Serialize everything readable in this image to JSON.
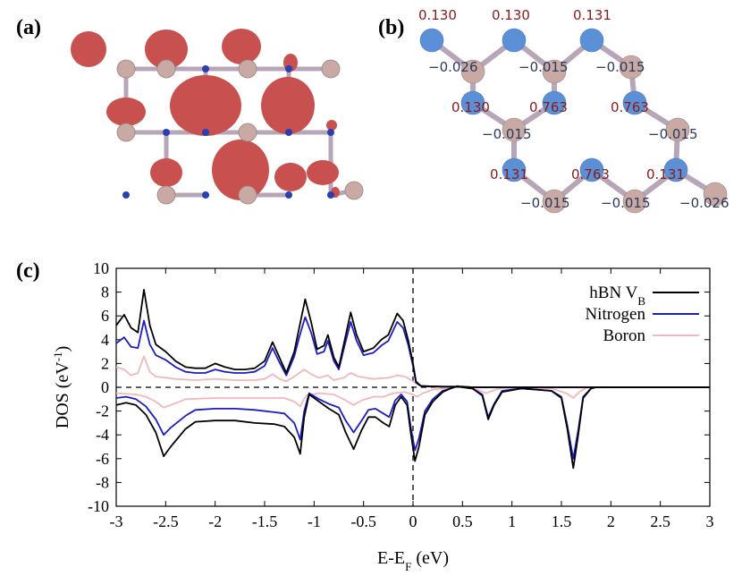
{
  "panels": {
    "a": "(a)",
    "b": "(b)",
    "c": "(c)"
  },
  "colors": {
    "atom_n": "#5b8fd6",
    "atom_b": "#c8a9a3",
    "bond": "#b7a6b8",
    "spin_density": "#c8504f",
    "charge_red": "#8b1a1a",
    "charge_blue": "#2b3a5c",
    "total": "#000000",
    "nitrogen": "#1c1cc0",
    "boron": "#f2b8b8"
  },
  "panel_b": {
    "charges": [
      {
        "text": "0.130",
        "color": "red"
      },
      {
        "text": "0.130",
        "color": "red"
      },
      {
        "text": "0.131",
        "color": "red"
      },
      {
        "text": "−0.026",
        "color": "blue"
      },
      {
        "text": "−0.015",
        "color": "blue"
      },
      {
        "text": "−0.015",
        "color": "blue"
      },
      {
        "text": "0.130",
        "color": "red"
      },
      {
        "text": "0.763",
        "color": "red"
      },
      {
        "text": "0.763",
        "color": "red"
      },
      {
        "text": "−0.015",
        "color": "blue"
      },
      {
        "text": "−0.015",
        "color": "blue"
      },
      {
        "text": "0.131",
        "color": "red"
      },
      {
        "text": "0.763",
        "color": "red"
      },
      {
        "text": "0.131",
        "color": "red"
      },
      {
        "text": "−0.015",
        "color": "blue"
      },
      {
        "text": "−0.015",
        "color": "blue"
      },
      {
        "text": "−0.026",
        "color": "blue"
      }
    ]
  },
  "chart_data": {
    "type": "line",
    "title": "",
    "xlabel": "E-E_F (eV)",
    "ylabel": "DOS (eV^-1)",
    "xlim": [
      -3,
      3
    ],
    "ylim": [
      -10,
      10
    ],
    "xticks": [
      "-3",
      "-2.5",
      "-2",
      "-1.5",
      "-1",
      "-0.5",
      "0",
      "0.5",
      "1",
      "1.5",
      "2",
      "2.5",
      "3"
    ],
    "yticks": [
      "10",
      "8",
      "6",
      "4",
      "2",
      "0",
      "-2",
      "-4",
      "-6",
      "-8",
      "-10"
    ],
    "legend_position": "top-right",
    "legend": [
      "hBN V_B",
      "Nitrogen",
      "Boron"
    ],
    "series": [
      {
        "name": "hBN V_B",
        "color": "#000000",
        "up": [
          [
            -3,
            5.2
          ],
          [
            -2.92,
            6.1
          ],
          [
            -2.85,
            5.0
          ],
          [
            -2.78,
            4.6
          ],
          [
            -2.72,
            8.2
          ],
          [
            -2.66,
            5.2
          ],
          [
            -2.6,
            3.6
          ],
          [
            -2.5,
            3.0
          ],
          [
            -2.4,
            2.2
          ],
          [
            -2.3,
            1.7
          ],
          [
            -2.2,
            1.6
          ],
          [
            -2.1,
            1.6
          ],
          [
            -2.0,
            2.0
          ],
          [
            -1.9,
            1.7
          ],
          [
            -1.8,
            1.5
          ],
          [
            -1.7,
            1.5
          ],
          [
            -1.6,
            1.6
          ],
          [
            -1.5,
            2.2
          ],
          [
            -1.42,
            3.8
          ],
          [
            -1.35,
            2.5
          ],
          [
            -1.28,
            1.2
          ],
          [
            -1.2,
            3.0
          ],
          [
            -1.15,
            5.0
          ],
          [
            -1.09,
            7.4
          ],
          [
            -1.03,
            5.5
          ],
          [
            -0.97,
            3.2
          ],
          [
            -0.9,
            3.5
          ],
          [
            -0.86,
            4.4
          ],
          [
            -0.8,
            2.5
          ],
          [
            -0.75,
            1.7
          ],
          [
            -0.7,
            3.6
          ],
          [
            -0.63,
            6.3
          ],
          [
            -0.57,
            4.4
          ],
          [
            -0.5,
            3.0
          ],
          [
            -0.4,
            3.3
          ],
          [
            -0.32,
            4.0
          ],
          [
            -0.25,
            4.4
          ],
          [
            -0.16,
            6.2
          ],
          [
            -0.1,
            5.6
          ],
          [
            -0.05,
            4.0
          ],
          [
            0.0,
            2.0
          ],
          [
            0.03,
            0.5
          ],
          [
            0.08,
            0.1
          ],
          [
            0.3,
            0.05
          ],
          [
            0.5,
            0.05
          ],
          [
            0.6,
            0.0
          ],
          [
            3.0,
            0.0
          ]
        ],
        "down": [
          [
            -3,
            -1.5
          ],
          [
            -2.9,
            -1.3
          ],
          [
            -2.8,
            -1.5
          ],
          [
            -2.7,
            -2.3
          ],
          [
            -2.6,
            -3.8
          ],
          [
            -2.52,
            -5.8
          ],
          [
            -2.45,
            -5.0
          ],
          [
            -2.3,
            -3.5
          ],
          [
            -2.2,
            -2.9
          ],
          [
            -2.0,
            -2.8
          ],
          [
            -1.8,
            -2.8
          ],
          [
            -1.6,
            -3.0
          ],
          [
            -1.4,
            -3.1
          ],
          [
            -1.3,
            -3.3
          ],
          [
            -1.2,
            -4.2
          ],
          [
            -1.14,
            -5.6
          ],
          [
            -1.1,
            -2.5
          ],
          [
            -1.05,
            -0.6
          ],
          [
            -0.95,
            -1.2
          ],
          [
            -0.85,
            -1.8
          ],
          [
            -0.75,
            -2.3
          ],
          [
            -0.68,
            -3.8
          ],
          [
            -0.6,
            -5.2
          ],
          [
            -0.52,
            -3.6
          ],
          [
            -0.45,
            -2.5
          ],
          [
            -0.38,
            -2.5
          ],
          [
            -0.3,
            -3.0
          ],
          [
            -0.24,
            -3.3
          ],
          [
            -0.18,
            -1.5
          ],
          [
            -0.12,
            -0.8
          ],
          [
            -0.06,
            -1.5
          ],
          [
            -0.02,
            -4.0
          ],
          [
            0.02,
            -6.2
          ],
          [
            0.06,
            -5.0
          ],
          [
            0.12,
            -2.3
          ],
          [
            0.2,
            -1.2
          ],
          [
            0.3,
            -0.4
          ],
          [
            0.38,
            -0.1
          ],
          [
            0.45,
            0.1
          ],
          [
            0.5,
            0.0
          ],
          [
            0.6,
            -0.1
          ],
          [
            0.7,
            -0.7
          ],
          [
            0.76,
            -2.7
          ],
          [
            0.82,
            -1.5
          ],
          [
            0.9,
            -0.4
          ],
          [
            1.1,
            -0.1
          ],
          [
            1.4,
            -0.3
          ],
          [
            1.5,
            -0.9
          ],
          [
            1.56,
            -3.5
          ],
          [
            1.62,
            -6.8
          ],
          [
            1.67,
            -4.0
          ],
          [
            1.72,
            -0.9
          ],
          [
            1.8,
            -0.1
          ],
          [
            1.85,
            0.0
          ],
          [
            3.0,
            0.0
          ]
        ]
      },
      {
        "name": "Nitrogen",
        "color": "#1c1cc0",
        "up": [
          [
            -3,
            3.7
          ],
          [
            -2.92,
            4.2
          ],
          [
            -2.85,
            3.4
          ],
          [
            -2.78,
            3.3
          ],
          [
            -2.72,
            5.6
          ],
          [
            -2.66,
            3.6
          ],
          [
            -2.6,
            2.7
          ],
          [
            -2.5,
            2.3
          ],
          [
            -2.4,
            1.7
          ],
          [
            -2.3,
            1.3
          ],
          [
            -2.2,
            1.2
          ],
          [
            -2.1,
            1.2
          ],
          [
            -2.0,
            1.5
          ],
          [
            -1.9,
            1.3
          ],
          [
            -1.8,
            1.2
          ],
          [
            -1.7,
            1.2
          ],
          [
            -1.6,
            1.3
          ],
          [
            -1.5,
            1.8
          ],
          [
            -1.42,
            3.3
          ],
          [
            -1.35,
            2.1
          ],
          [
            -1.28,
            1.0
          ],
          [
            -1.2,
            2.6
          ],
          [
            -1.15,
            4.2
          ],
          [
            -1.09,
            5.9
          ],
          [
            -1.03,
            4.6
          ],
          [
            -0.97,
            2.8
          ],
          [
            -0.9,
            3.0
          ],
          [
            -0.86,
            3.9
          ],
          [
            -0.8,
            2.2
          ],
          [
            -0.75,
            1.5
          ],
          [
            -0.7,
            3.2
          ],
          [
            -0.63,
            5.5
          ],
          [
            -0.57,
            3.9
          ],
          [
            -0.5,
            2.7
          ],
          [
            -0.4,
            2.9
          ],
          [
            -0.32,
            3.5
          ],
          [
            -0.25,
            3.9
          ],
          [
            -0.16,
            5.5
          ],
          [
            -0.1,
            5.0
          ],
          [
            -0.05,
            3.6
          ],
          [
            0.0,
            1.8
          ],
          [
            0.03,
            0.4
          ],
          [
            0.08,
            0.1
          ],
          [
            0.3,
            0.05
          ],
          [
            0.5,
            0.05
          ],
          [
            0.6,
            0.0
          ],
          [
            3.0,
            0.0
          ]
        ],
        "down": [
          [
            -3,
            -0.9
          ],
          [
            -2.9,
            -0.8
          ],
          [
            -2.8,
            -1.0
          ],
          [
            -2.7,
            -1.6
          ],
          [
            -2.6,
            -2.7
          ],
          [
            -2.52,
            -4.0
          ],
          [
            -2.45,
            -3.4
          ],
          [
            -2.3,
            -2.4
          ],
          [
            -2.2,
            -1.9
          ],
          [
            -2.0,
            -1.8
          ],
          [
            -1.8,
            -1.8
          ],
          [
            -1.6,
            -1.9
          ],
          [
            -1.4,
            -2.1
          ],
          [
            -1.3,
            -2.2
          ],
          [
            -1.2,
            -3.0
          ],
          [
            -1.14,
            -4.4
          ],
          [
            -1.1,
            -2.0
          ],
          [
            -1.05,
            -0.5
          ],
          [
            -0.95,
            -1.0
          ],
          [
            -0.85,
            -1.4
          ],
          [
            -0.75,
            -1.7
          ],
          [
            -0.68,
            -2.8
          ],
          [
            -0.6,
            -3.8
          ],
          [
            -0.52,
            -2.8
          ],
          [
            -0.45,
            -1.9
          ],
          [
            -0.38,
            -1.8
          ],
          [
            -0.3,
            -2.2
          ],
          [
            -0.24,
            -2.5
          ],
          [
            -0.18,
            -1.1
          ],
          [
            -0.12,
            -0.6
          ],
          [
            -0.06,
            -1.2
          ],
          [
            -0.02,
            -3.5
          ],
          [
            0.02,
            -5.3
          ],
          [
            0.06,
            -4.3
          ],
          [
            0.12,
            -2.0
          ],
          [
            0.2,
            -1.0
          ],
          [
            0.3,
            -0.3
          ],
          [
            0.38,
            -0.1
          ],
          [
            0.45,
            0.1
          ],
          [
            0.5,
            0.0
          ],
          [
            0.6,
            -0.1
          ],
          [
            0.7,
            -0.6
          ],
          [
            0.76,
            -2.5
          ],
          [
            0.82,
            -1.4
          ],
          [
            0.9,
            -0.3
          ],
          [
            1.1,
            -0.1
          ],
          [
            1.4,
            -0.3
          ],
          [
            1.5,
            -0.8
          ],
          [
            1.56,
            -3.2
          ],
          [
            1.62,
            -6.0
          ],
          [
            1.67,
            -3.6
          ],
          [
            1.72,
            -0.8
          ],
          [
            1.8,
            -0.1
          ],
          [
            1.85,
            0.0
          ],
          [
            3.0,
            0.0
          ]
        ]
      },
      {
        "name": "Boron",
        "color": "#f2b8b8",
        "up": [
          [
            -3,
            1.7
          ],
          [
            -2.92,
            1.5
          ],
          [
            -2.85,
            1.0
          ],
          [
            -2.78,
            1.2
          ],
          [
            -2.72,
            2.6
          ],
          [
            -2.66,
            1.3
          ],
          [
            -2.6,
            0.9
          ],
          [
            -2.4,
            0.7
          ],
          [
            -2.2,
            0.6
          ],
          [
            -2.0,
            0.7
          ],
          [
            -1.8,
            0.6
          ],
          [
            -1.6,
            0.6
          ],
          [
            -1.5,
            0.7
          ],
          [
            -1.42,
            1.1
          ],
          [
            -1.35,
            0.7
          ],
          [
            -1.28,
            0.5
          ],
          [
            -1.2,
            0.9
          ],
          [
            -1.1,
            1.5
          ],
          [
            -1.03,
            1.1
          ],
          [
            -0.95,
            0.8
          ],
          [
            -0.86,
            1.0
          ],
          [
            -0.8,
            0.6
          ],
          [
            -0.7,
            0.8
          ],
          [
            -0.63,
            1.2
          ],
          [
            -0.55,
            0.9
          ],
          [
            -0.4,
            0.7
          ],
          [
            -0.25,
            0.8
          ],
          [
            -0.16,
            1.0
          ],
          [
            -0.08,
            0.9
          ],
          [
            0.0,
            0.5
          ],
          [
            0.05,
            0.2
          ],
          [
            0.2,
            0.05
          ],
          [
            0.4,
            0.0
          ],
          [
            3.0,
            0.0
          ]
        ],
        "down": [
          [
            -3,
            -0.5
          ],
          [
            -2.8,
            -0.6
          ],
          [
            -2.7,
            -0.8
          ],
          [
            -2.6,
            -1.2
          ],
          [
            -2.52,
            -1.7
          ],
          [
            -2.45,
            -1.5
          ],
          [
            -2.3,
            -1.0
          ],
          [
            -2.0,
            -0.9
          ],
          [
            -1.6,
            -0.9
          ],
          [
            -1.3,
            -0.9
          ],
          [
            -1.2,
            -1.2
          ],
          [
            -1.14,
            -1.6
          ],
          [
            -1.08,
            -0.7
          ],
          [
            -0.95,
            -0.5
          ],
          [
            -0.8,
            -0.6
          ],
          [
            -0.68,
            -1.1
          ],
          [
            -0.6,
            -1.5
          ],
          [
            -0.52,
            -1.1
          ],
          [
            -0.4,
            -0.8
          ],
          [
            -0.3,
            -0.8
          ],
          [
            -0.2,
            -0.5
          ],
          [
            -0.08,
            -0.4
          ],
          [
            0.0,
            -0.6
          ],
          [
            0.04,
            -0.8
          ],
          [
            0.1,
            -0.5
          ],
          [
            0.2,
            -0.2
          ],
          [
            0.3,
            -0.1
          ],
          [
            0.4,
            0.0
          ],
          [
            0.55,
            0.0
          ],
          [
            0.65,
            -0.2
          ],
          [
            0.74,
            -0.5
          ],
          [
            0.8,
            -0.3
          ],
          [
            0.9,
            -0.05
          ],
          [
            1.4,
            -0.1
          ],
          [
            1.55,
            -0.5
          ],
          [
            1.62,
            -0.9
          ],
          [
            1.68,
            -0.4
          ],
          [
            1.75,
            -0.05
          ],
          [
            1.85,
            0.0
          ],
          [
            3.0,
            0.0
          ]
        ]
      }
    ]
  }
}
